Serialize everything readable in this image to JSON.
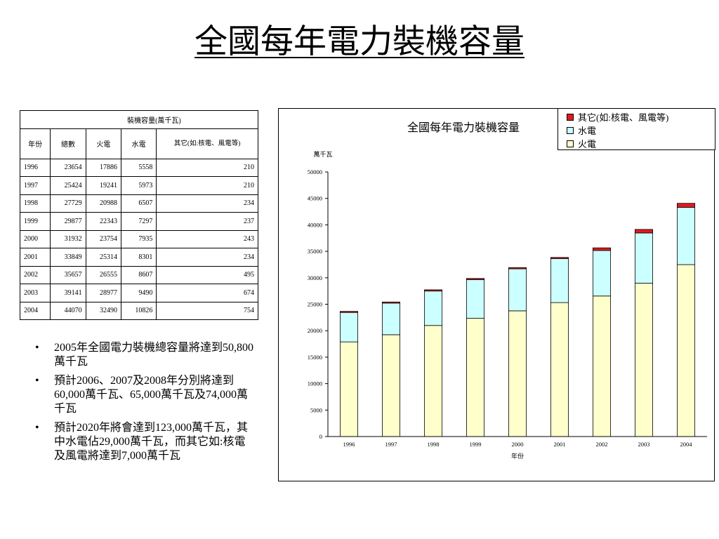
{
  "slide": {
    "title": "全國每年電力裝機容量",
    "bullets": [
      "2005年全國電力裝機總容量將達到50,800萬千瓦",
      "預計2006、2007及2008年分別將達到60,000萬千瓦、65,000萬千瓦及74,000萬千瓦",
      "預計2020年將會達到123,000萬千瓦，其中水電佔29,000萬千瓦，而其它如:核電及風電將達到7,000萬千瓦"
    ],
    "bullet_symbol": "•"
  },
  "table": {
    "caption": "裝機容量(萬千瓦)",
    "columns": [
      "年份",
      "總數",
      "火電",
      "水電",
      "其它(如:核電、風電等)"
    ],
    "rows": [
      [
        "1996",
        "23654",
        "17886",
        "5558",
        "210"
      ],
      [
        "1997",
        "25424",
        "19241",
        "5973",
        "210"
      ],
      [
        "1998",
        "27729",
        "20988",
        "6507",
        "234"
      ],
      [
        "1999",
        "29877",
        "22343",
        "7297",
        "237"
      ],
      [
        "2000",
        "31932",
        "23754",
        "7935",
        "243"
      ],
      [
        "2001",
        "33849",
        "25314",
        "8301",
        "234"
      ],
      [
        "2002",
        "35657",
        "26555",
        "8607",
        "495"
      ],
      [
        "2003",
        "39141",
        "28977",
        "9490",
        "674"
      ],
      [
        "2004",
        "44070",
        "32490",
        "10826",
        "754"
      ]
    ]
  },
  "chart_data": {
    "type": "bar",
    "stacked": true,
    "title": "全國每年電力裝機容量",
    "ylabel": "萬千瓦",
    "xlabel": "年份",
    "ylim": [
      0,
      50000
    ],
    "yticks": [
      0,
      5000,
      10000,
      15000,
      20000,
      25000,
      30000,
      35000,
      40000,
      45000,
      50000
    ],
    "grid": false,
    "legend_position": "top-right",
    "categories": [
      "1996",
      "1997",
      "1998",
      "1999",
      "2000",
      "2001",
      "2002",
      "2003",
      "2004"
    ],
    "series": [
      {
        "name": "火電",
        "color": "#ffffcc",
        "values": [
          17886,
          19241,
          20988,
          22343,
          23754,
          25314,
          26555,
          28977,
          32490
        ]
      },
      {
        "name": "水電",
        "color": "#ccffff",
        "values": [
          5558,
          5973,
          6507,
          7297,
          7935,
          8301,
          8607,
          9490,
          10826
        ]
      },
      {
        "name": "其它(如:核電、風電等)",
        "color": "#e31a1c",
        "values": [
          210,
          210,
          234,
          237,
          243,
          234,
          495,
          674,
          754
        ]
      }
    ]
  }
}
